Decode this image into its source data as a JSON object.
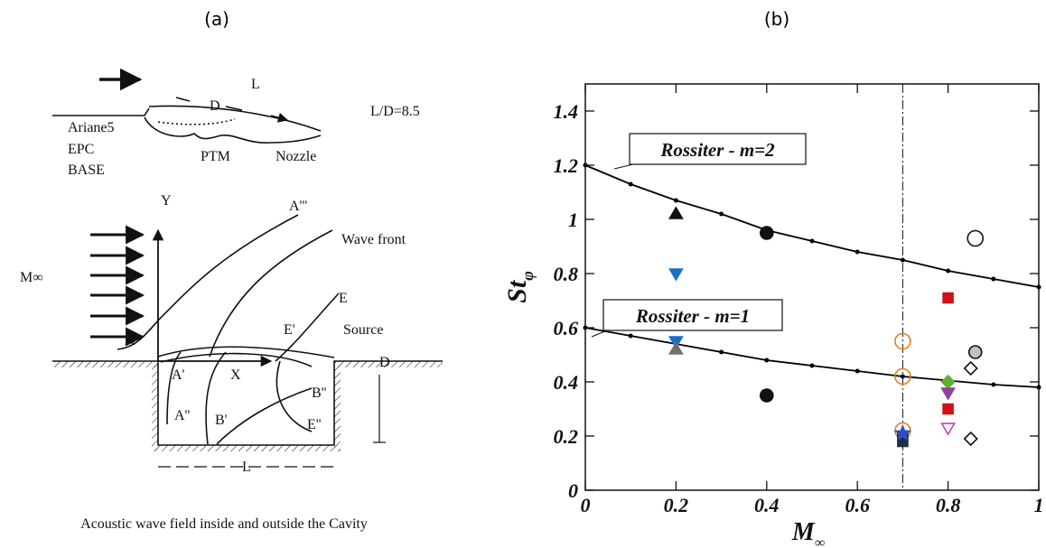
{
  "panel_a": {
    "label": "(a)",
    "labels": [
      "L",
      "D",
      "L/D=8.5",
      "Ariane5",
      "EPC",
      "BASE",
      "PTM",
      "Nozzle",
      "Y",
      "A'''",
      "Wave front",
      "M∞",
      "E",
      "E'",
      "Source",
      "A''",
      "A'",
      "X",
      "B''",
      "D",
      "A''",
      "B'",
      "E''",
      "L"
    ],
    "caption": "Acoustic wave field inside and outside the Cavity"
  },
  "panel_b_label": "(b)",
  "chart_data": {
    "type": "scatter",
    "xlabel": {
      "text": "M",
      "subscript": "∞"
    },
    "ylabel": {
      "text": "St",
      "subscript": "φ"
    },
    "xlim": [
      0,
      1
    ],
    "ylim": [
      0,
      1.5
    ],
    "xticks": [
      0,
      0.2,
      0.4,
      0.6,
      0.8,
      1
    ],
    "yticks": [
      0,
      0.2,
      0.4,
      0.6,
      0.8,
      1,
      1.2,
      1.4
    ],
    "vline": 0.7,
    "annotations": [
      "Rossiter - m=2",
      "Rossiter - m=1"
    ],
    "curves": [
      {
        "color": "#000000",
        "x": [
          0,
          0.1,
          0.2,
          0.3,
          0.4,
          0.5,
          0.6,
          0.7,
          0.8,
          0.9,
          1
        ],
        "values": [
          1.2,
          1.13,
          1.07,
          1.02,
          0.96,
          0.92,
          0.88,
          0.85,
          0.81,
          0.78,
          0.75
        ]
      },
      {
        "color": "#000000",
        "x": [
          0,
          0.1,
          0.2,
          0.3,
          0.4,
          0.5,
          0.6,
          0.7,
          0.8,
          0.9,
          1
        ],
        "values": [
          0.6,
          0.57,
          0.54,
          0.51,
          0.48,
          0.46,
          0.44,
          0.42,
          0.405,
          0.39,
          0.38
        ]
      }
    ],
    "series": [
      {
        "marker": "triangle-up",
        "color": "#111111",
        "open": false,
        "x": [
          0.2
        ],
        "values": [
          1.02
        ]
      },
      {
        "marker": "circle",
        "color": "#111111",
        "open": false,
        "x": [
          0.4,
          0.4
        ],
        "values": [
          0.95,
          0.35
        ]
      },
      {
        "marker": "triangle-down",
        "color": "#1a6fc4",
        "open": false,
        "x": [
          0.2,
          0.2
        ],
        "values": [
          0.8,
          0.55
        ]
      },
      {
        "marker": "triangle-up",
        "color": "#707070",
        "open": false,
        "x": [
          0.2
        ],
        "values": [
          0.52
        ]
      },
      {
        "marker": "circle",
        "color": "#111111",
        "open": true,
        "x": [
          0.86
        ],
        "values": [
          0.93
        ]
      },
      {
        "marker": "square",
        "color": "#d0101a",
        "open": false,
        "x": [
          0.8,
          0.8
        ],
        "values": [
          0.71,
          0.3
        ]
      },
      {
        "marker": "circle",
        "color": "#c0c0c0",
        "open": false,
        "x": [
          0.86
        ],
        "values": [
          0.51
        ]
      },
      {
        "marker": "diamond",
        "color": "#111111",
        "open": true,
        "x": [
          0.85,
          0.85
        ],
        "values": [
          0.45,
          0.19
        ]
      },
      {
        "marker": "diamond",
        "color": "#5cb030",
        "open": false,
        "x": [
          0.8
        ],
        "values": [
          0.4
        ]
      },
      {
        "marker": "triangle-down",
        "color": "#9040a0",
        "open": false,
        "x": [
          0.8
        ],
        "values": [
          0.36
        ]
      },
      {
        "marker": "triangle-down",
        "color": "#c040c0",
        "open": true,
        "x": [
          0.8
        ],
        "values": [
          0.23
        ]
      },
      {
        "marker": "circle",
        "color": "#e08020",
        "open": true,
        "x": [
          0.7,
          0.7,
          0.7
        ],
        "values": [
          0.55,
          0.42,
          0.22
        ]
      },
      {
        "marker": "square",
        "color": "#203040",
        "open": false,
        "x": [
          0.7,
          0.7
        ],
        "values": [
          0.2,
          0.18
        ]
      },
      {
        "marker": "star",
        "color": "#3050c0",
        "open": false,
        "x": [
          0.7
        ],
        "values": [
          0.21
        ]
      }
    ]
  }
}
